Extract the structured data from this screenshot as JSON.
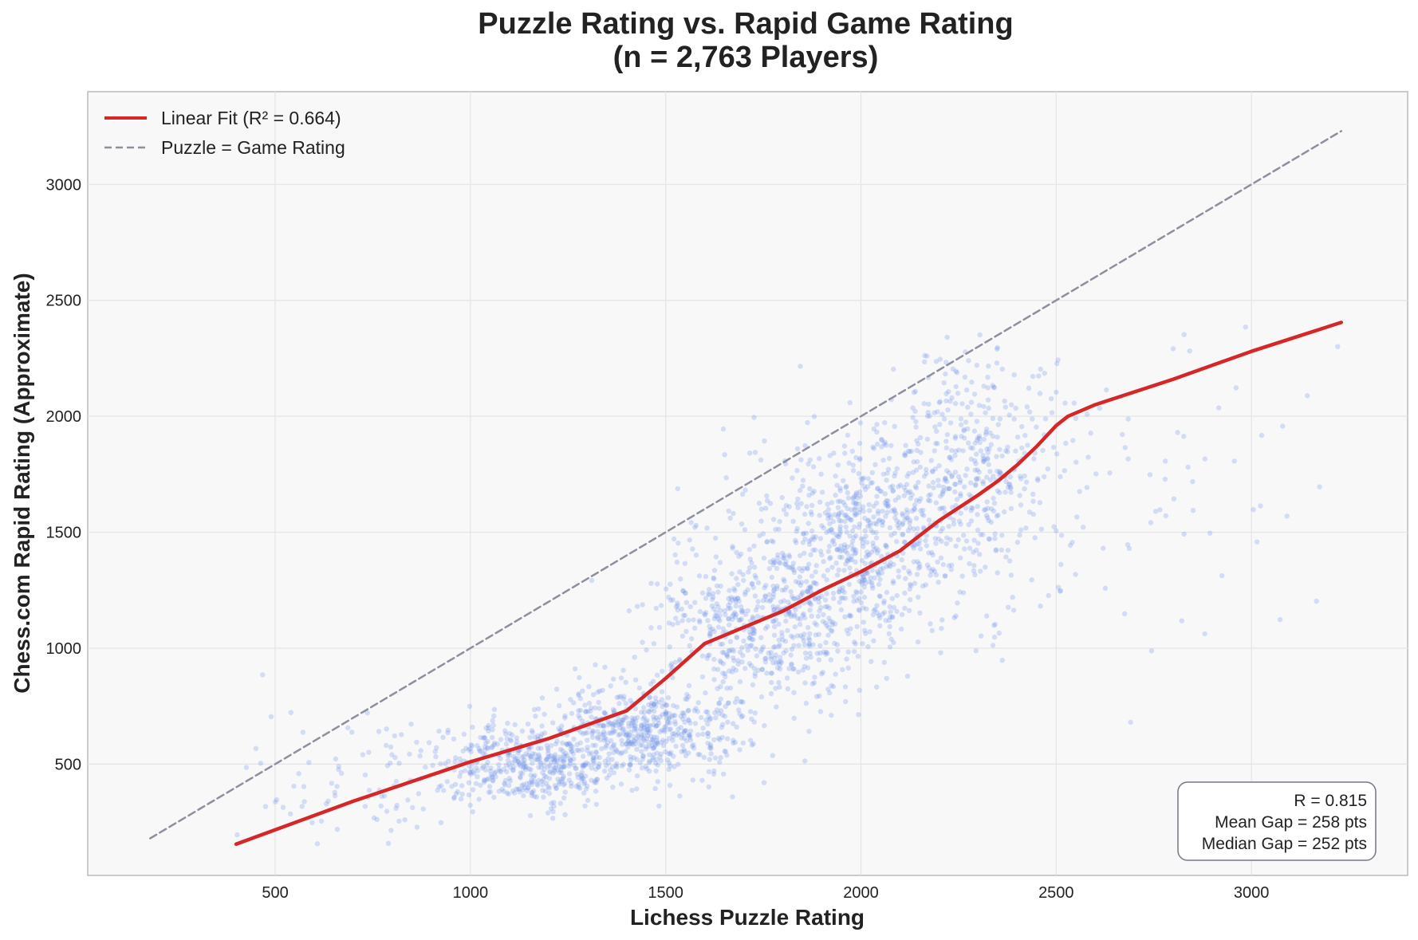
{
  "chart_data": {
    "type": "scatter",
    "title_line1": "Puzzle Rating vs. Rapid Game Rating",
    "title_line2": "(n = 2,763 Players)",
    "xlabel": "Lichess Puzzle Rating",
    "ylabel": "Chess.com Rapid Rating (Approximate)",
    "xlim": [
      20,
      3400
    ],
    "ylim": [
      20,
      3400
    ],
    "xticks": [
      500,
      1000,
      1500,
      2000,
      2500,
      3000
    ],
    "yticks": [
      500,
      1000,
      1500,
      2000,
      2500,
      3000
    ],
    "grid": true,
    "legend_position": "top-left",
    "legend": [
      {
        "label": "Linear Fit (R² = 0.664)",
        "style": "solid",
        "color": "#d62728"
      },
      {
        "label": "Puzzle = Game Rating",
        "style": "dashed",
        "color": "#8e8e9e"
      }
    ],
    "scatter": {
      "n": 2763,
      "color": "#6f95e8",
      "opacity": 0.28,
      "clusters": [
        {
          "x": 1150,
          "y": 500,
          "sx": 140,
          "sy": 90,
          "w": 0.18
        },
        {
          "x": 1450,
          "y": 650,
          "sx": 130,
          "sy": 100,
          "w": 0.18
        },
        {
          "x": 1750,
          "y": 1100,
          "sx": 140,
          "sy": 180,
          "w": 0.2
        },
        {
          "x": 2000,
          "y": 1450,
          "sx": 130,
          "sy": 220,
          "w": 0.22
        },
        {
          "x": 2280,
          "y": 1750,
          "sx": 120,
          "sy": 250,
          "w": 0.16
        },
        {
          "x": 2700,
          "y": 1800,
          "sx": 250,
          "sy": 400,
          "w": 0.03
        },
        {
          "x": 700,
          "y": 400,
          "sx": 150,
          "sy": 150,
          "w": 0.03
        }
      ]
    },
    "series": [
      {
        "name": "Linear Fit (R² = 0.664)",
        "type": "line",
        "style": "solid",
        "color": "#d62728",
        "x": [
          400,
          700,
          1000,
          1200,
          1400,
          1500,
          1600,
          1700,
          1800,
          1900,
          2000,
          2100,
          2200,
          2300,
          2350,
          2400,
          2450,
          2500,
          2530,
          2600,
          2800,
          3000,
          3230
        ],
        "y": [
          155,
          340,
          510,
          610,
          730,
          870,
          1020,
          1090,
          1160,
          1250,
          1330,
          1420,
          1550,
          1660,
          1720,
          1790,
          1870,
          1960,
          2000,
          2050,
          2160,
          2280,
          2405
        ]
      },
      {
        "name": "Puzzle = Game Rating",
        "type": "line",
        "style": "dashed",
        "color": "#8e8e9e",
        "x": [
          180,
          3230
        ],
        "y": [
          180,
          3230
        ]
      }
    ],
    "stats_box": {
      "position": "bottom-right",
      "lines": [
        "R = 0.815",
        "Mean Gap = 258 pts",
        "Median Gap = 252 pts"
      ]
    }
  }
}
